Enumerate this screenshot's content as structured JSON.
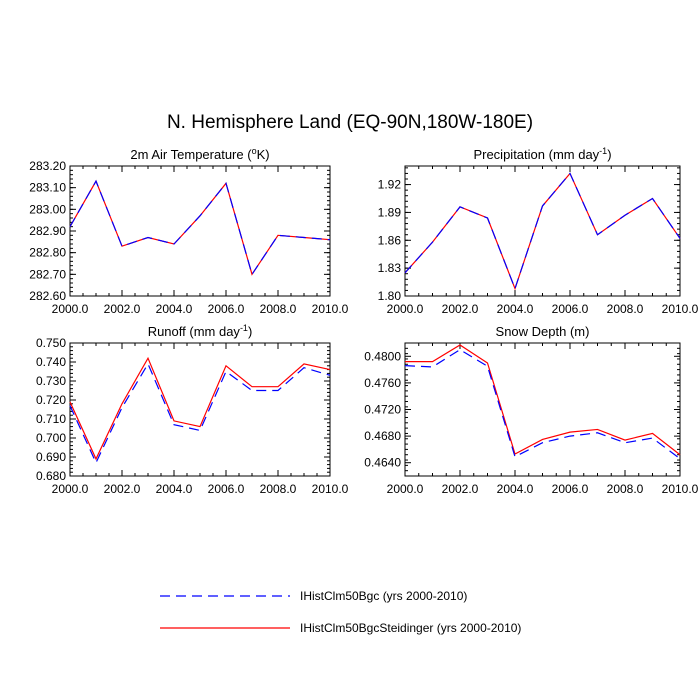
{
  "title": "N. Hemisphere Land (EQ-90N,180W-180E)",
  "colors": {
    "case1": "#0000ff",
    "case2": "#ff0000"
  },
  "legend": {
    "placement": "bottom-center",
    "items": [
      {
        "label": "IHistClm50Bgc (yrs 2000-2010)",
        "style": "dashed",
        "color_key": "case1"
      },
      {
        "label": "IHistClm50BgcSteidinger (yrs 2000-2010)",
        "style": "solid",
        "color_key": "case2"
      }
    ]
  },
  "chart_data": [
    {
      "type": "line",
      "title": "2m Air Temperature",
      "title_unit": "K",
      "title_unit_sup": "o",
      "x": [
        2000,
        2001,
        2002,
        2003,
        2004,
        2005,
        2006,
        2007,
        2008,
        2009,
        2010
      ],
      "xlim": [
        2000,
        2010
      ],
      "xticks": [
        "2000.0",
        "2002.0",
        "2004.0",
        "2006.0",
        "2008.0",
        "2010.0"
      ],
      "ylim": [
        282.6,
        283.2
      ],
      "yticks": [
        "282.60",
        "282.70",
        "282.80",
        "282.90",
        "283.00",
        "283.10",
        "283.20"
      ],
      "series": [
        {
          "name": "IHistClm50Bgc (yrs 2000-2010)",
          "values": [
            282.92,
            283.13,
            282.83,
            282.87,
            282.84,
            282.97,
            283.12,
            282.7,
            282.88,
            282.87,
            282.86
          ]
        },
        {
          "name": "IHistClm50BgcSteidinger (yrs 2000-2010)",
          "values": [
            282.92,
            283.13,
            282.83,
            282.87,
            282.84,
            282.97,
            283.12,
            282.7,
            282.88,
            282.87,
            282.86
          ]
        }
      ]
    },
    {
      "type": "line",
      "title": "Precipitation",
      "title_unit": "mm day",
      "title_unit_sup": "-1",
      "x": [
        2000,
        2001,
        2002,
        2003,
        2004,
        2005,
        2006,
        2007,
        2008,
        2009,
        2010
      ],
      "xlim": [
        2000,
        2010
      ],
      "xticks": [
        "2000.0",
        "2002.0",
        "2004.0",
        "2006.0",
        "2008.0",
        "2010.0"
      ],
      "ylim": [
        1.8,
        1.94
      ],
      "yticks": [
        "1.80",
        "1.83",
        "1.86",
        "1.89",
        "1.92"
      ],
      "series": [
        {
          "name": "IHistClm50Bgc (yrs 2000-2010)",
          "values": [
            1.825,
            1.858,
            1.896,
            1.884,
            1.808,
            1.897,
            1.932,
            1.866,
            1.887,
            1.905,
            1.862
          ]
        },
        {
          "name": "IHistClm50BgcSteidinger (yrs 2000-2010)",
          "values": [
            1.825,
            1.858,
            1.896,
            1.884,
            1.808,
            1.897,
            1.932,
            1.866,
            1.887,
            1.905,
            1.862
          ]
        }
      ]
    },
    {
      "type": "line",
      "title": "Runoff",
      "title_unit": "mm day",
      "title_unit_sup": "-1",
      "x": [
        2000,
        2001,
        2002,
        2003,
        2004,
        2005,
        2006,
        2007,
        2008,
        2009,
        2010
      ],
      "xlim": [
        2000,
        2010
      ],
      "xticks": [
        "2000.0",
        "2002.0",
        "2004.0",
        "2006.0",
        "2008.0",
        "2010.0"
      ],
      "ylim": [
        0.68,
        0.75
      ],
      "yticks": [
        "0.680",
        "0.690",
        "0.700",
        "0.710",
        "0.720",
        "0.730",
        "0.740",
        "0.750"
      ],
      "series": [
        {
          "name": "IHistClm50Bgc (yrs 2000-2010)",
          "values": [
            0.717,
            0.687,
            0.716,
            0.739,
            0.707,
            0.704,
            0.735,
            0.725,
            0.725,
            0.737,
            0.733
          ]
        },
        {
          "name": "IHistClm50BgcSteidinger (yrs 2000-2010)",
          "values": [
            0.719,
            0.689,
            0.718,
            0.742,
            0.709,
            0.706,
            0.738,
            0.727,
            0.727,
            0.739,
            0.736
          ]
        }
      ]
    },
    {
      "type": "line",
      "title": "Snow Depth",
      "title_unit": "m",
      "title_unit_sup": "",
      "x": [
        2000,
        2001,
        2002,
        2003,
        2004,
        2005,
        2006,
        2007,
        2008,
        2009,
        2010
      ],
      "xlim": [
        2000,
        2010
      ],
      "xticks": [
        "2000.0",
        "2002.0",
        "2004.0",
        "2006.0",
        "2008.0",
        "2010.0"
      ],
      "ylim": [
        0.462,
        0.482
      ],
      "yticks": [
        "0.4640",
        "0.4680",
        "0.4720",
        "0.4760",
        "0.4800"
      ],
      "series": [
        {
          "name": "IHistClm50Bgc (yrs 2000-2010)",
          "values": [
            0.4786,
            0.4784,
            0.481,
            0.4785,
            0.4649,
            0.467,
            0.468,
            0.4685,
            0.467,
            0.4677,
            0.4646
          ]
        },
        {
          "name": "IHistClm50BgcSteidinger (yrs 2000-2010)",
          "values": [
            0.4792,
            0.4792,
            0.4817,
            0.479,
            0.4653,
            0.4675,
            0.4686,
            0.469,
            0.4674,
            0.4684,
            0.4652
          ]
        }
      ]
    }
  ]
}
